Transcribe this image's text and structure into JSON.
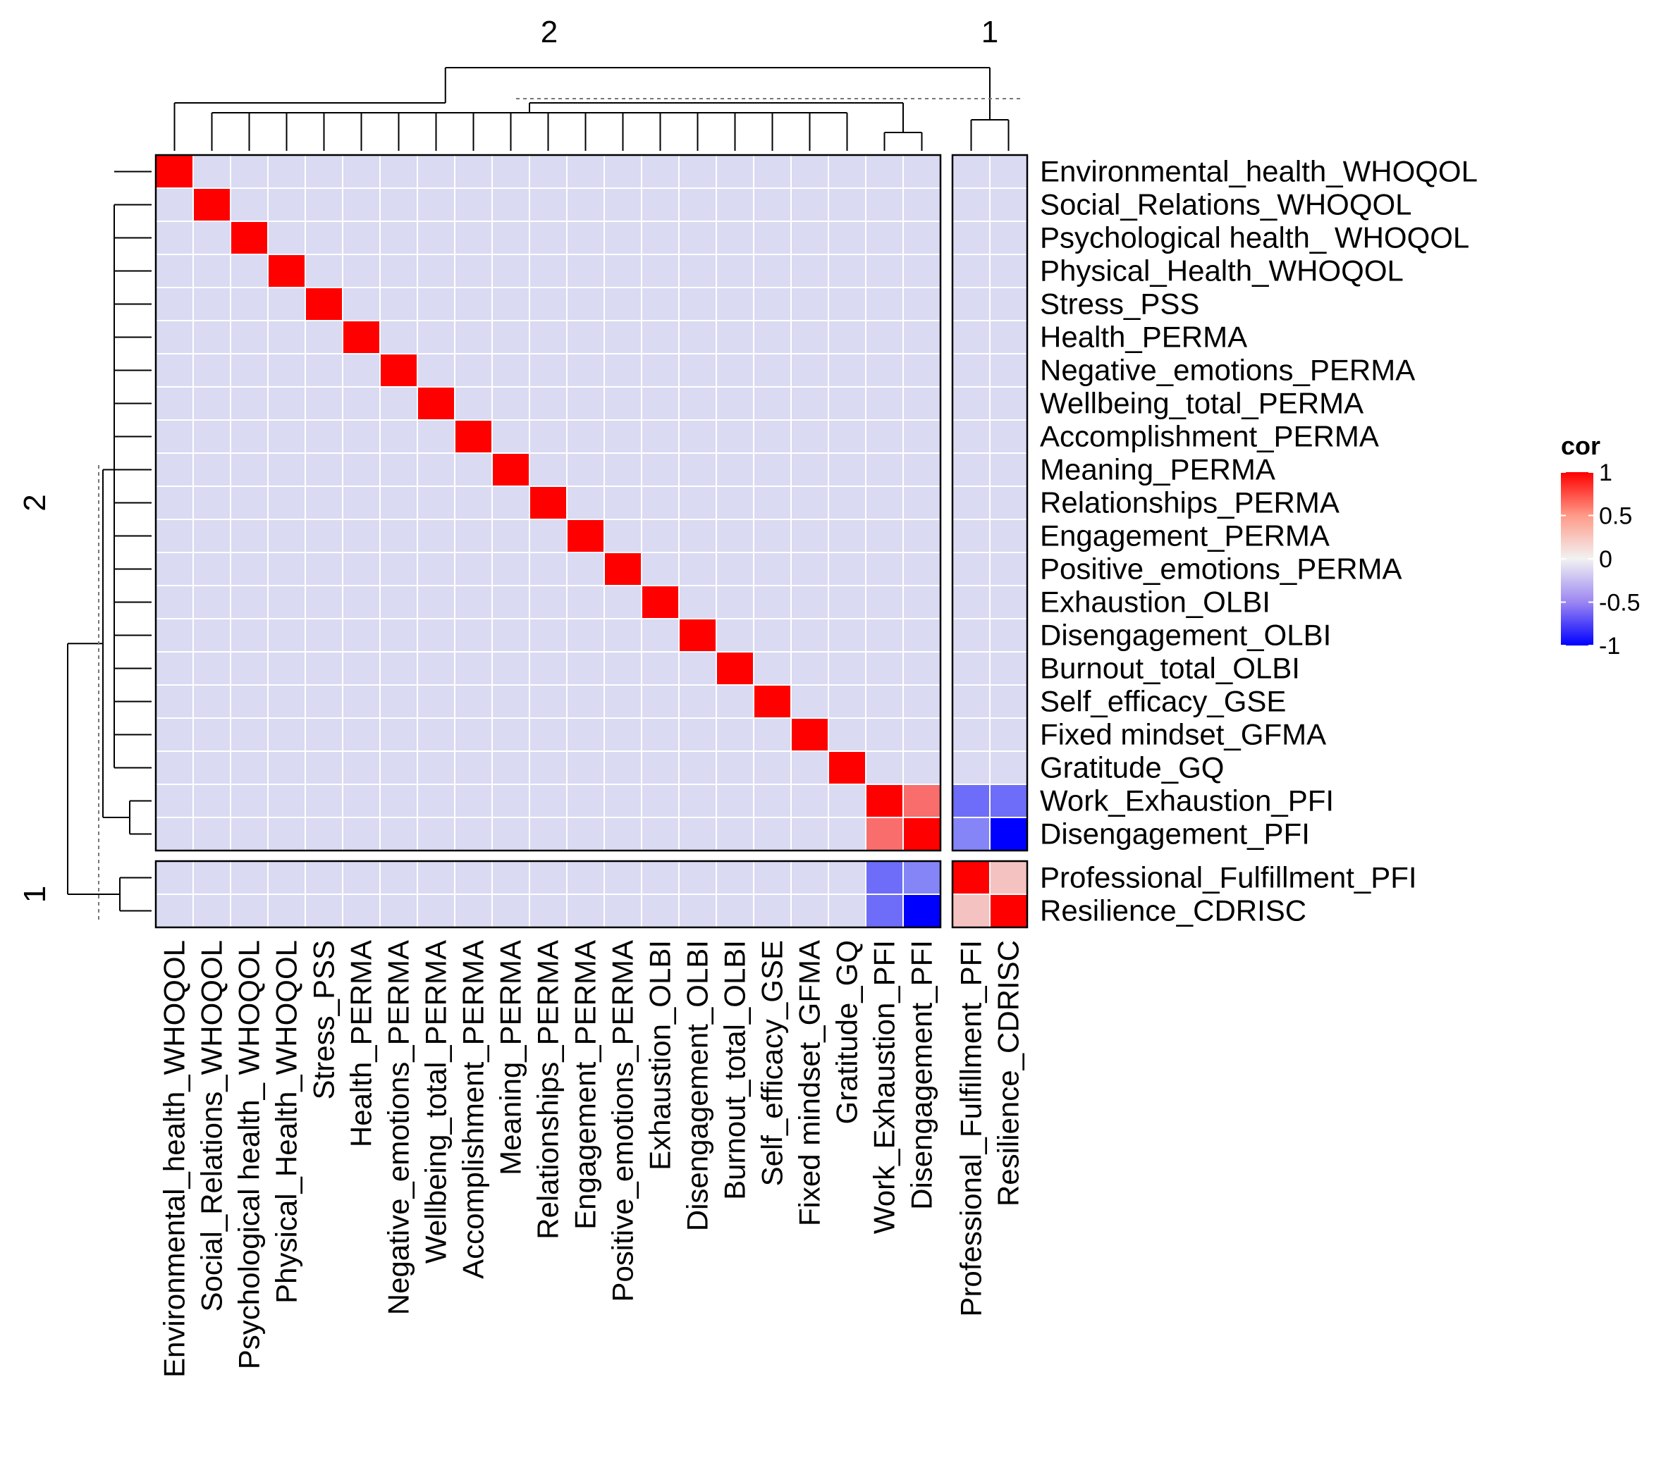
{
  "chart_data": {
    "type": "heatmap",
    "variables": [
      "Environmental_health_WHOQOL",
      "Social_Relations_WHOQOL",
      "Psychological health_ WHOQOL",
      "Physical_Health_WHOQOL",
      "Stress_PSS",
      "Health_PERMA",
      "Negative_emotions_PERMA",
      "Wellbeing_total_PERMA",
      "Accomplishment_PERMA",
      "Meaning_PERMA",
      "Relationships_PERMA",
      "Engagement_PERMA",
      "Positive_emotions_PERMA",
      "Exhaustion_OLBI",
      "Disengagement_OLBI",
      "Burnout_total_OLBI",
      "Self_efficacy_GSE",
      "Fixed mindset_GFMA",
      "Gratitude_GQ",
      "Work_Exhaustion_PFI",
      "Disengagement_PFI",
      "Professional_Fulfillment_PFI",
      "Resilience_CDRISC"
    ],
    "default_value": -0.1,
    "cells": [
      {
        "row": 0,
        "col": 0,
        "value": 1
      },
      {
        "row": 1,
        "col": 1,
        "value": 1
      },
      {
        "row": 2,
        "col": 2,
        "value": 1
      },
      {
        "row": 3,
        "col": 3,
        "value": 1
      },
      {
        "row": 4,
        "col": 4,
        "value": 1
      },
      {
        "row": 5,
        "col": 5,
        "value": 1
      },
      {
        "row": 6,
        "col": 6,
        "value": 1
      },
      {
        "row": 7,
        "col": 7,
        "value": 1
      },
      {
        "row": 8,
        "col": 8,
        "value": 1
      },
      {
        "row": 9,
        "col": 9,
        "value": 1
      },
      {
        "row": 10,
        "col": 10,
        "value": 1
      },
      {
        "row": 11,
        "col": 11,
        "value": 1
      },
      {
        "row": 12,
        "col": 12,
        "value": 1
      },
      {
        "row": 13,
        "col": 13,
        "value": 1
      },
      {
        "row": 14,
        "col": 14,
        "value": 1
      },
      {
        "row": 15,
        "col": 15,
        "value": 1
      },
      {
        "row": 16,
        "col": 16,
        "value": 1
      },
      {
        "row": 17,
        "col": 17,
        "value": 1
      },
      {
        "row": 18,
        "col": 18,
        "value": 1
      },
      {
        "row": 19,
        "col": 19,
        "value": 1
      },
      {
        "row": 19,
        "col": 20,
        "value": 0.55
      },
      {
        "row": 20,
        "col": 19,
        "value": 0.55
      },
      {
        "row": 20,
        "col": 20,
        "value": 1
      },
      {
        "row": 19,
        "col": 21,
        "value": -0.55
      },
      {
        "row": 19,
        "col": 22,
        "value": -0.55
      },
      {
        "row": 20,
        "col": 21,
        "value": -0.45
      },
      {
        "row": 20,
        "col": 22,
        "value": -1
      },
      {
        "row": 21,
        "col": 19,
        "value": -0.55
      },
      {
        "row": 21,
        "col": 20,
        "value": -0.45
      },
      {
        "row": 22,
        "col": 19,
        "value": -0.55
      },
      {
        "row": 22,
        "col": 20,
        "value": -1
      },
      {
        "row": 21,
        "col": 21,
        "value": 1
      },
      {
        "row": 21,
        "col": 22,
        "value": 0.2
      },
      {
        "row": 22,
        "col": 21,
        "value": 0.2
      },
      {
        "row": 22,
        "col": 22,
        "value": 1
      }
    ],
    "row_split_labels": [
      "2",
      "1"
    ],
    "column_split_labels": [
      "2",
      "1"
    ],
    "legend": {
      "title": "cor",
      "tick_values": [
        1,
        0.5,
        0,
        -0.5,
        -1
      ],
      "tick_labels": [
        "1",
        "0.5",
        "0",
        "-0.5",
        "-1"
      ],
      "position": "right"
    },
    "colors": {
      "positive": "#ff0000",
      "zero": "#f2f2f2",
      "negative": "#0000ff",
      "cell_border": "#ffffff",
      "panel_border": "#000000",
      "dendrogram": "#000000"
    },
    "color_range": [
      -1,
      1
    ],
    "dendrograms": true
  }
}
